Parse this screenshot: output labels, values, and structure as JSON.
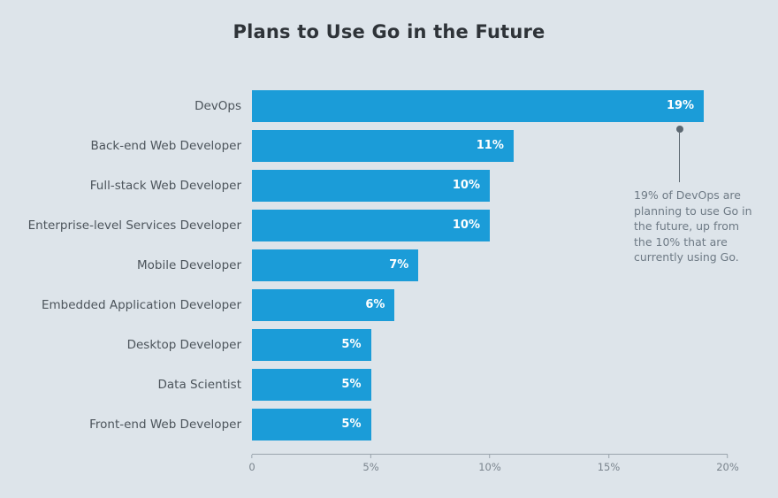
{
  "title": "Plans to Use Go in the Future",
  "chart_data": {
    "type": "bar",
    "orientation": "horizontal",
    "title": "Plans to Use Go in the Future",
    "categories": [
      "DevOps",
      "Back-end Web Developer",
      "Full-stack Web Developer",
      "Enterprise-level Services Developer",
      "Mobile Developer",
      "Embedded Application Developer",
      "Desktop Developer",
      "Data Scientist",
      "Front-end Web Developer"
    ],
    "values": [
      19,
      11,
      10,
      10,
      7,
      6,
      5,
      5,
      5
    ],
    "value_labels": [
      "19%",
      "11%",
      "10%",
      "10%",
      "7%",
      "6%",
      "5%",
      "5%",
      "5%"
    ],
    "xlim": [
      0,
      20
    ],
    "x_ticks": [
      "0",
      "5%",
      "10%",
      "15%",
      "20%"
    ],
    "grid": false,
    "legend": "none",
    "bar_color": "#1b9cd8",
    "background_color": "#dde4ea",
    "annotation": "19% of DevOps are planning to use Go in the future, up from the 10% that are currently using Go."
  }
}
